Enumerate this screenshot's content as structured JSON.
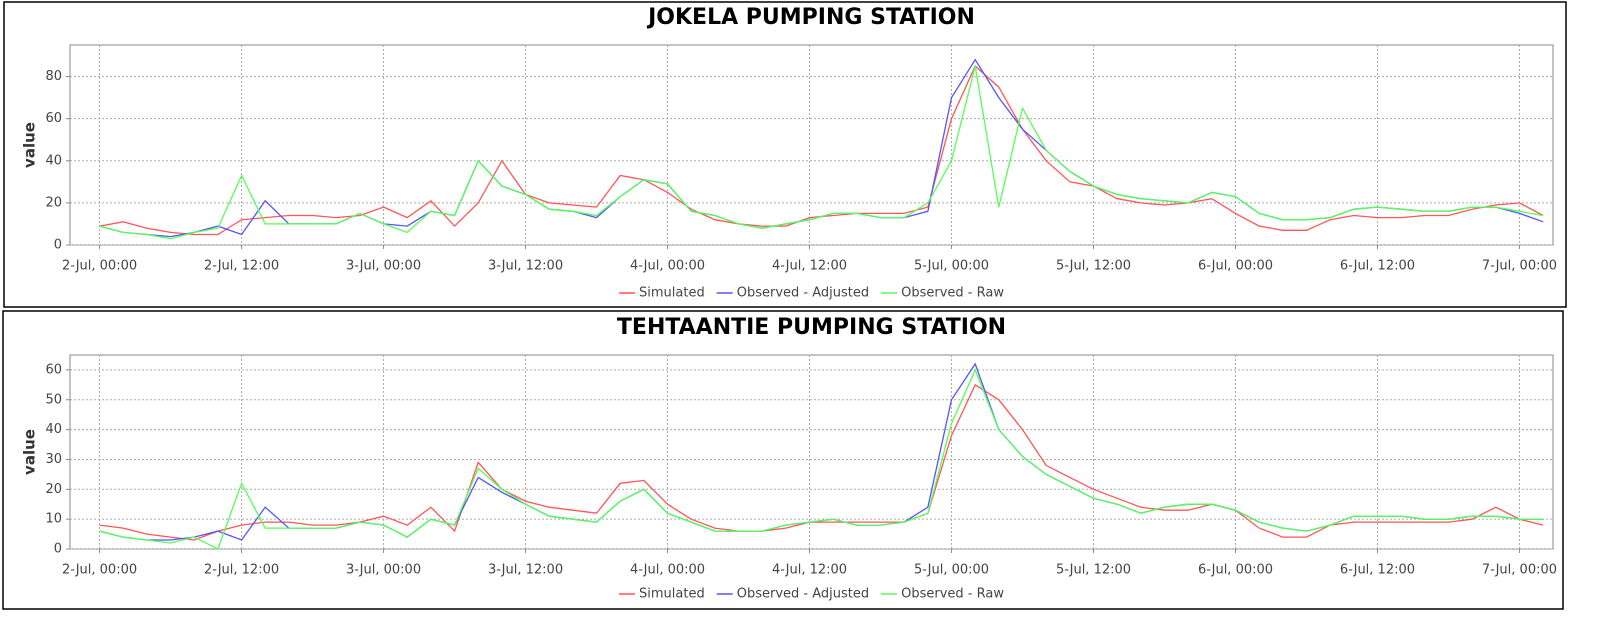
{
  "chart_data": [
    {
      "type": "line",
      "title": "JOKELA PUMPING STATION",
      "y_label": "value",
      "grid": true,
      "legend": "bottom",
      "xlim": [
        "1-Jul, 21:30",
        "7-Jul, 02:50"
      ],
      "xticks": [
        "2-Jul, 00:00",
        "2-Jul, 12:00",
        "3-Jul, 00:00",
        "3-Jul, 12:00",
        "4-Jul, 00:00",
        "4-Jul, 12:00",
        "5-Jul, 00:00",
        "5-Jul, 12:00",
        "6-Jul, 00:00",
        "6-Jul, 12:00",
        "7-Jul, 00:00"
      ],
      "ylim": [
        0,
        95
      ],
      "yticks": [
        0,
        20,
        40,
        60,
        80
      ],
      "x": [
        "2-Jul, 00:00",
        "2-Jul, 02:00",
        "2-Jul, 04:00",
        "2-Jul, 06:00",
        "2-Jul, 08:00",
        "2-Jul, 10:00",
        "2-Jul, 12:00",
        "2-Jul, 14:00",
        "2-Jul, 16:00",
        "2-Jul, 18:00",
        "2-Jul, 20:00",
        "2-Jul, 22:00",
        "3-Jul, 00:00",
        "3-Jul, 02:00",
        "3-Jul, 04:00",
        "3-Jul, 06:00",
        "3-Jul, 08:00",
        "3-Jul, 10:00",
        "3-Jul, 12:00",
        "3-Jul, 14:00",
        "3-Jul, 16:00",
        "3-Jul, 18:00",
        "3-Jul, 20:00",
        "3-Jul, 22:00",
        "4-Jul, 00:00",
        "4-Jul, 02:00",
        "4-Jul, 04:00",
        "4-Jul, 06:00",
        "4-Jul, 08:00",
        "4-Jul, 10:00",
        "4-Jul, 12:00",
        "4-Jul, 14:00",
        "4-Jul, 16:00",
        "4-Jul, 18:00",
        "4-Jul, 20:00",
        "4-Jul, 22:00",
        "5-Jul, 00:00",
        "5-Jul, 02:00",
        "5-Jul, 04:00",
        "5-Jul, 06:00",
        "5-Jul, 08:00",
        "5-Jul, 10:00",
        "5-Jul, 12:00",
        "5-Jul, 14:00",
        "5-Jul, 16:00",
        "5-Jul, 18:00",
        "5-Jul, 20:00",
        "5-Jul, 22:00",
        "6-Jul, 00:00",
        "6-Jul, 02:00",
        "6-Jul, 04:00",
        "6-Jul, 06:00",
        "6-Jul, 08:00",
        "6-Jul, 10:00",
        "6-Jul, 12:00",
        "6-Jul, 14:00",
        "6-Jul, 16:00",
        "6-Jul, 18:00",
        "6-Jul, 20:00",
        "6-Jul, 22:00",
        "7-Jul, 00:00",
        "7-Jul, 02:00"
      ],
      "series": [
        {
          "name": "Simulated",
          "color": "#ff5555",
          "values": [
            9,
            11,
            8,
            6,
            5,
            5,
            12,
            13,
            14,
            14,
            13,
            14,
            18,
            13,
            21,
            9,
            20,
            40,
            24,
            20,
            19,
            18,
            33,
            31,
            25,
            17,
            12,
            10,
            9,
            9,
            13,
            14,
            15,
            15,
            15,
            18,
            60,
            85,
            75,
            55,
            40,
            30,
            28,
            22,
            20,
            19,
            20,
            22,
            15,
            9,
            7,
            7,
            12,
            14,
            13,
            13,
            14,
            14,
            17,
            19,
            20,
            14
          ]
        },
        {
          "name": "Observed - Adjusted",
          "color": "#5555ff",
          "values": [
            9,
            6,
            5,
            4,
            6,
            9,
            5,
            21,
            10,
            10,
            10,
            15,
            10,
            9,
            16,
            14,
            40,
            28,
            24,
            17,
            16,
            13,
            23,
            31,
            29,
            16,
            14,
            10,
            8,
            10,
            12,
            15,
            15,
            13,
            13,
            16,
            70,
            88,
            70,
            55,
            45,
            35,
            28,
            24,
            22,
            21,
            20,
            25,
            23,
            15,
            12,
            12,
            13,
            17,
            18,
            17,
            16,
            16,
            18,
            18,
            15,
            11
          ]
        },
        {
          "name": "Observed - Raw",
          "color": "#55ff55",
          "values": [
            9,
            6,
            5,
            3,
            6,
            8,
            33,
            10,
            10,
            10,
            10,
            15,
            10,
            6,
            16,
            14,
            40,
            28,
            24,
            17,
            16,
            14,
            23,
            31,
            29,
            16,
            14,
            10,
            8,
            10,
            12,
            15,
            15,
            13,
            13,
            20,
            40,
            85,
            18,
            65,
            45,
            35,
            28,
            24,
            22,
            21,
            20,
            25,
            23,
            15,
            12,
            12,
            13,
            17,
            18,
            17,
            16,
            16,
            18,
            18,
            16,
            14
          ]
        }
      ]
    },
    {
      "type": "line",
      "title": "TEHTAANTIE PUMPING STATION",
      "y_label": "value",
      "grid": true,
      "legend": "bottom",
      "xlim": [
        "1-Jul, 21:30",
        "7-Jul, 02:50"
      ],
      "xticks": [
        "2-Jul, 00:00",
        "2-Jul, 12:00",
        "3-Jul, 00:00",
        "3-Jul, 12:00",
        "4-Jul, 00:00",
        "4-Jul, 12:00",
        "5-Jul, 00:00",
        "5-Jul, 12:00",
        "6-Jul, 00:00",
        "6-Jul, 12:00",
        "7-Jul, 00:00"
      ],
      "ylim": [
        0,
        65
      ],
      "yticks": [
        0,
        10,
        20,
        30,
        40,
        50,
        60
      ],
      "x": [
        "2-Jul, 00:00",
        "2-Jul, 02:00",
        "2-Jul, 04:00",
        "2-Jul, 06:00",
        "2-Jul, 08:00",
        "2-Jul, 10:00",
        "2-Jul, 12:00",
        "2-Jul, 14:00",
        "2-Jul, 16:00",
        "2-Jul, 18:00",
        "2-Jul, 20:00",
        "2-Jul, 22:00",
        "3-Jul, 00:00",
        "3-Jul, 02:00",
        "3-Jul, 04:00",
        "3-Jul, 06:00",
        "3-Jul, 08:00",
        "3-Jul, 10:00",
        "3-Jul, 12:00",
        "3-Jul, 14:00",
        "3-Jul, 16:00",
        "3-Jul, 18:00",
        "3-Jul, 20:00",
        "3-Jul, 22:00",
        "4-Jul, 00:00",
        "4-Jul, 02:00",
        "4-Jul, 04:00",
        "4-Jul, 06:00",
        "4-Jul, 08:00",
        "4-Jul, 10:00",
        "4-Jul, 12:00",
        "4-Jul, 14:00",
        "4-Jul, 16:00",
        "4-Jul, 18:00",
        "4-Jul, 20:00",
        "4-Jul, 22:00",
        "5-Jul, 00:00",
        "5-Jul, 02:00",
        "5-Jul, 04:00",
        "5-Jul, 06:00",
        "5-Jul, 08:00",
        "5-Jul, 10:00",
        "5-Jul, 12:00",
        "5-Jul, 14:00",
        "5-Jul, 16:00",
        "5-Jul, 18:00",
        "5-Jul, 20:00",
        "5-Jul, 22:00",
        "6-Jul, 00:00",
        "6-Jul, 02:00",
        "6-Jul, 04:00",
        "6-Jul, 06:00",
        "6-Jul, 08:00",
        "6-Jul, 10:00",
        "6-Jul, 12:00",
        "6-Jul, 14:00",
        "6-Jul, 16:00",
        "6-Jul, 18:00",
        "6-Jul, 20:00",
        "6-Jul, 22:00",
        "7-Jul, 00:00",
        "7-Jul, 02:00"
      ],
      "series": [
        {
          "name": "Simulated",
          "color": "#ff5555",
          "values": [
            8,
            7,
            5,
            4,
            3,
            6,
            8,
            9,
            9,
            8,
            8,
            9,
            11,
            8,
            14,
            6,
            29,
            20,
            16,
            14,
            13,
            12,
            22,
            23,
            15,
            10,
            7,
            6,
            6,
            7,
            9,
            9,
            9,
            9,
            9,
            12,
            38,
            55,
            50,
            40,
            28,
            24,
            20,
            17,
            14,
            13,
            13,
            15,
            13,
            7,
            4,
            4,
            8,
            9,
            9,
            9,
            9,
            9,
            10,
            14,
            10,
            8
          ]
        },
        {
          "name": "Observed - Adjusted",
          "color": "#5555ff",
          "values": [
            6,
            4,
            3,
            3,
            4,
            6,
            3,
            14,
            7,
            7,
            7,
            9,
            8,
            4,
            10,
            8,
            24,
            19,
            15,
            11,
            10,
            9,
            16,
            20,
            12,
            9,
            6,
            6,
            6,
            8,
            9,
            10,
            8,
            8,
            9,
            14,
            50,
            62,
            40,
            31,
            25,
            21,
            17,
            15,
            12,
            14,
            15,
            15,
            13,
            9,
            7,
            6,
            8,
            11,
            11,
            11,
            10,
            10,
            11,
            11,
            10,
            10
          ]
        },
        {
          "name": "Observed - Raw",
          "color": "#55ff55",
          "values": [
            6,
            4,
            3,
            2,
            4,
            0,
            22,
            7,
            7,
            7,
            7,
            9,
            8,
            4,
            10,
            8,
            27,
            20,
            15,
            11,
            10,
            9,
            16,
            20,
            12,
            9,
            6,
            6,
            6,
            8,
            9,
            10,
            8,
            8,
            9,
            12,
            42,
            60,
            40,
            31,
            25,
            21,
            17,
            15,
            12,
            14,
            15,
            15,
            13,
            9,
            7,
            6,
            8,
            11,
            11,
            11,
            10,
            10,
            11,
            11,
            10,
            10
          ]
        }
      ]
    }
  ]
}
